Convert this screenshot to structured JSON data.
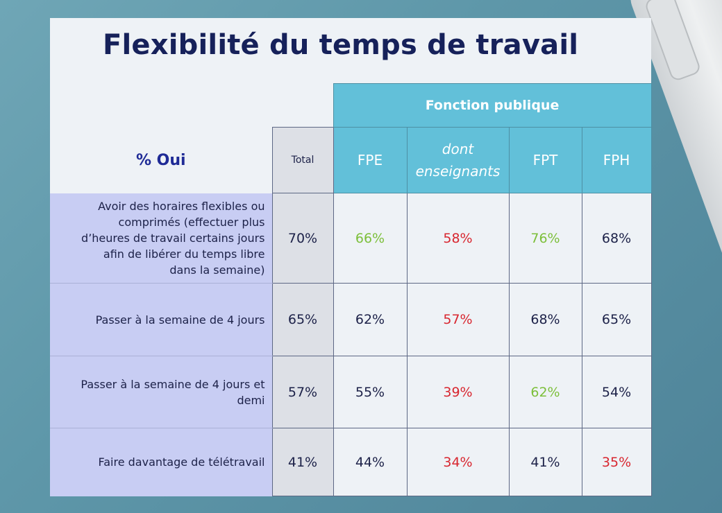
{
  "title": "Flexibilité du temps de travail",
  "group_header": "Fonction publique",
  "oui_label": "% Oui",
  "columns": [
    "Total",
    "FPE",
    "dont enseignants",
    "FPT",
    "FPH"
  ],
  "column_labels": {
    "total": "Total",
    "fpe": "FPE",
    "ens_line1": "dont",
    "ens_line2": "enseignants",
    "fpt": "FPT",
    "fph": "FPH"
  },
  "rows": [
    {
      "label_lines": [
        "Avoir des horaires flexibles ou",
        "comprimés (effectuer plus",
        "d’heures de travail certains jours",
        "afin de libérer du temps libre",
        "dans la semaine)"
      ],
      "values": [
        "70%",
        "66%",
        "58%",
        "76%",
        "68%"
      ]
    },
    {
      "label_lines": [
        "Passer à la semaine de 4 jours"
      ],
      "values": [
        "65%",
        "62%",
        "57%",
        "68%",
        "65%"
      ]
    },
    {
      "label_lines": [
        "Passer à la semaine de 4 jours et",
        "demi"
      ],
      "values": [
        "57%",
        "55%",
        "39%",
        "62%",
        "54%"
      ]
    },
    {
      "label_lines": [
        "Faire davantage de télétravail"
      ],
      "values": [
        "41%",
        "44%",
        "34%",
        "41%",
        "35%"
      ]
    }
  ],
  "colors": {
    "header_bg": "#62c0d9",
    "label_bg": "#c8cdf3",
    "total_bg": "#dde0e6",
    "green": "#7cbf3a",
    "red": "#d8262f",
    "title": "#16215a"
  },
  "chart_data": {
    "type": "table",
    "title": "Flexibilité du temps de travail",
    "group_header": "Fonction publique",
    "columns": [
      "Total",
      "FPE",
      "dont enseignants",
      "FPT",
      "FPH"
    ],
    "rows": [
      {
        "label": "Avoir des horaires flexibles ou comprimés (effectuer plus d’heures de travail certains jours afin de libérer du temps libre dans la semaine)",
        "values": [
          70,
          66,
          58,
          76,
          68
        ],
        "highlight": [
          "",
          "green",
          "red",
          "green",
          ""
        ]
      },
      {
        "label": "Passer à la semaine de 4 jours",
        "values": [
          65,
          62,
          57,
          68,
          65
        ],
        "highlight": [
          "",
          "",
          "red",
          "",
          ""
        ]
      },
      {
        "label": "Passer à la semaine de 4 jours et demi",
        "values": [
          57,
          55,
          39,
          62,
          54
        ],
        "highlight": [
          "",
          "",
          "red",
          "green",
          ""
        ]
      },
      {
        "label": "Faire davantage de télétravail",
        "values": [
          41,
          44,
          34,
          41,
          35
        ],
        "highlight": [
          "",
          "",
          "red",
          "",
          "red"
        ]
      }
    ],
    "unit": "%"
  }
}
